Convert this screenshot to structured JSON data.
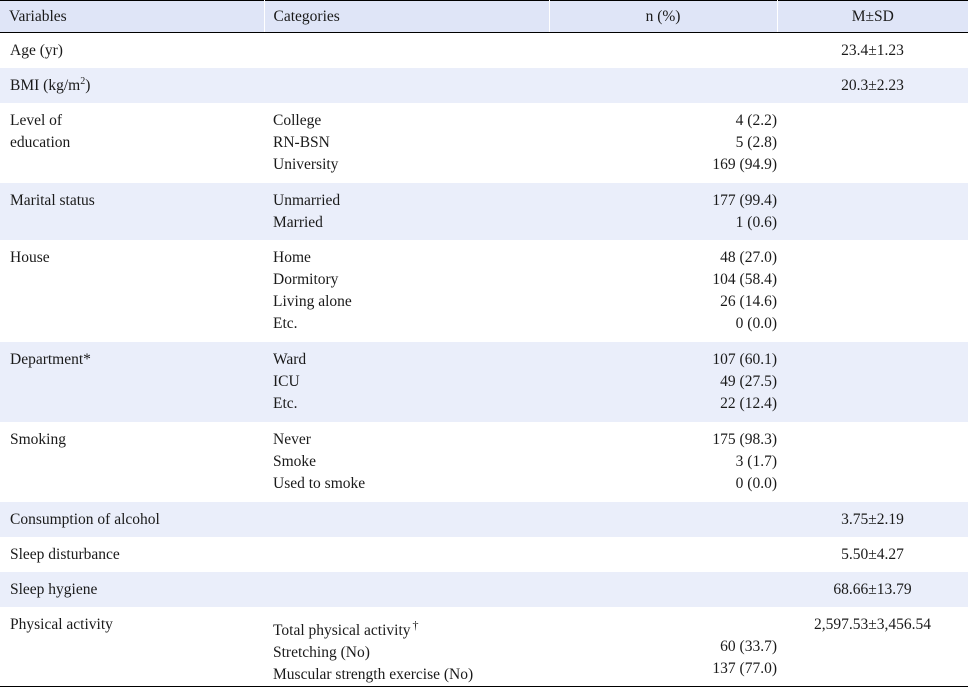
{
  "table": {
    "headers": [
      "Variables",
      "Categories",
      "n (%)",
      "M±SD"
    ],
    "rows": [
      {
        "variable": "Age (yr)",
        "categories": [],
        "n": [],
        "msd": "23.4±1.23"
      },
      {
        "variable": "BMI (kg/m",
        "variable_sup": "2",
        "variable_tail": ")",
        "categories": [],
        "n": [],
        "msd": "20.3±2.23"
      },
      {
        "variable_lines": [
          "Level of",
          "education"
        ],
        "categories": [
          "College",
          "RN-BSN",
          "University"
        ],
        "n": [
          "4 (2.2)",
          "5 (2.8)",
          "169 (94.9)"
        ],
        "msd": ""
      },
      {
        "variable": "Marital status",
        "categories": [
          "Unmarried",
          "Married"
        ],
        "n": [
          "177 (99.4)",
          "1 (0.6)"
        ],
        "msd": ""
      },
      {
        "variable": "House",
        "categories": [
          "Home",
          "Dormitory",
          "Living alone",
          "Etc."
        ],
        "n": [
          "48 (27.0)",
          "104 (58.4)",
          "26 (14.6)",
          "0 (0.0)"
        ],
        "msd": ""
      },
      {
        "variable": "Department*",
        "categories": [
          "Ward",
          "ICU",
          "Etc."
        ],
        "n": [
          "107 (60.1)",
          "49 (27.5)",
          "22 (12.4)"
        ],
        "msd": ""
      },
      {
        "variable": "Smoking",
        "categories": [
          "Never",
          "Smoke",
          "Used to smoke"
        ],
        "n": [
          "175 (98.3)",
          "3 (1.7)",
          "0 (0.0)"
        ],
        "msd": ""
      },
      {
        "variable": "Consumption of alcohol",
        "categories": [],
        "n": [],
        "msd": "3.75±2.19"
      },
      {
        "variable": "Sleep disturbance",
        "categories": [],
        "n": [],
        "msd": "5.50±4.27"
      },
      {
        "variable": "Sleep hygiene",
        "categories": [],
        "n": [],
        "msd": "68.66±13.79"
      },
      {
        "variable": "Physical activity",
        "categories": [
          "Total physical activity",
          "Stretching (No)",
          "Muscular strength exercise (No)"
        ],
        "category_marks": [
          "†",
          "",
          ""
        ],
        "n": [
          "",
          "60 (33.7)",
          "137 (77.0)"
        ],
        "msd": "2,597.53±3,456.54"
      }
    ]
  }
}
